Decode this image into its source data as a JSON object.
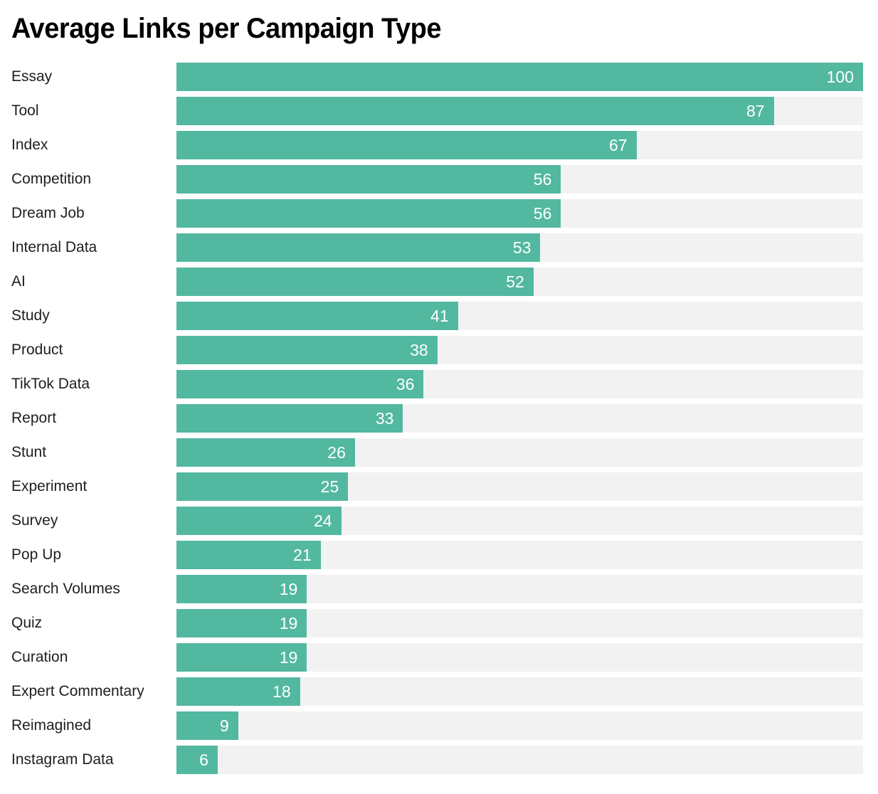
{
  "header": {
    "title": "Average Links per Campaign Type"
  },
  "colors": {
    "bar": "#53b8a0",
    "track": "#f2f2f2",
    "label": "#1e1e1e",
    "value": "#ffffff",
    "title": "#000000"
  },
  "chart_data": {
    "type": "bar",
    "orientation": "horizontal",
    "title": "Average Links per Campaign Type",
    "categories": [
      "Essay",
      "Tool",
      "Index",
      "Competition",
      "Dream Job",
      "Internal Data",
      "AI",
      "Study",
      "Product",
      "TikTok Data",
      "Report",
      "Stunt",
      "Experiment",
      "Survey",
      "Pop Up",
      "Search Volumes",
      "Quiz",
      "Curation",
      "Expert Commentary",
      "Reimagined",
      "Instagram Data"
    ],
    "values": [
      100,
      87,
      67,
      56,
      56,
      53,
      52,
      41,
      38,
      36,
      33,
      26,
      25,
      24,
      21,
      19,
      19,
      19,
      18,
      9,
      6
    ],
    "xlabel": "",
    "ylabel": "",
    "xlim": [
      0,
      100
    ],
    "grid": false,
    "legend": false,
    "value_label_position": "inside-end",
    "sort": "descending"
  }
}
